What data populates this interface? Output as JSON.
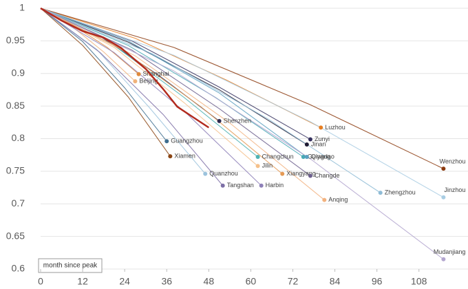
{
  "chart_data": {
    "type": "line",
    "x_label": "month since peak",
    "xlim": [
      0,
      122
    ],
    "xticks": [
      0,
      12,
      24,
      36,
      48,
      60,
      72,
      84,
      96,
      108
    ],
    "ylim": [
      0.6,
      1
    ],
    "yticks": [
      0.6,
      0.65,
      0.7,
      0.75,
      0.8,
      0.85,
      0.9,
      0.95,
      1
    ],
    "grid": true,
    "series": [
      {
        "name": "Shanghai",
        "color": "#e08a3c",
        "x": [
          0,
          9,
          19,
          28
        ],
        "values": [
          1,
          0.975,
          0.94,
          0.899
        ]
      },
      {
        "name": "Beijing",
        "color": "#f0b27a",
        "x": [
          0,
          9,
          18,
          27
        ],
        "values": [
          1,
          0.972,
          0.933,
          0.888
        ]
      },
      {
        "name": "Shenzhen",
        "color": "#2e2a4f",
        "x": [
          0,
          17,
          34,
          51
        ],
        "values": [
          1,
          0.957,
          0.896,
          0.827
        ]
      },
      {
        "name": "Luzhou",
        "color": "#e67e22",
        "x": [
          0,
          27,
          53,
          80
        ],
        "values": [
          1,
          0.954,
          0.89,
          0.817
        ]
      },
      {
        "name": "Zunyi",
        "color": "#34305e",
        "x": [
          0,
          26,
          51,
          77
        ],
        "values": [
          1,
          0.95,
          0.879,
          0.799
        ]
      },
      {
        "name": "Jinan",
        "color": "#1e1b33",
        "x": [
          0,
          25,
          51,
          76
        ],
        "values": [
          1,
          0.948,
          0.875,
          0.791
        ]
      },
      {
        "name": "Guangzhou",
        "color": "#3f6e8f",
        "x": [
          0,
          12,
          24,
          36
        ],
        "values": [
          1,
          0.949,
          0.878,
          0.796
        ]
      },
      {
        "name": "Xiamen",
        "color": "#8b4513",
        "x": [
          0,
          12,
          25,
          37
        ],
        "values": [
          1,
          0.943,
          0.864,
          0.773
        ]
      },
      {
        "name": "Changchun",
        "color": "#4fb3b3",
        "x": [
          0,
          21,
          41,
          62
        ],
        "values": [
          1,
          0.943,
          0.863,
          0.772
        ]
      },
      {
        "name": "Guiyang",
        "color": "#48a9b5",
        "x": [
          0,
          25,
          50,
          75
        ],
        "values": [
          1,
          0.943,
          0.863,
          0.772
        ]
      },
      {
        "name": "Qingdao",
        "color": "#5a9fc0",
        "x": [
          0,
          25,
          51,
          76
        ],
        "values": [
          1,
          0.95,
          0.87,
          0.772
        ]
      },
      {
        "name": "Jilin",
        "color": "#f5c08a",
        "x": [
          0,
          21,
          41,
          62
        ],
        "values": [
          1,
          0.94,
          0.855,
          0.758
        ]
      },
      {
        "name": "Xiangyang",
        "color": "#e59a55",
        "x": [
          0,
          23,
          46,
          69
        ],
        "values": [
          1,
          0.937,
          0.848,
          0.746
        ]
      },
      {
        "name": "Changde",
        "color": "#6c5f8d",
        "x": [
          0,
          26,
          51,
          77
        ],
        "values": [
          1,
          0.936,
          0.846,
          0.743
        ]
      },
      {
        "name": "Quanzhou",
        "color": "#9cc3dd",
        "x": [
          0,
          16,
          31,
          47
        ],
        "values": [
          1,
          0.937,
          0.848,
          0.746
        ]
      },
      {
        "name": "Tangshan",
        "color": "#7d6fa6",
        "x": [
          0,
          17,
          35,
          52
        ],
        "values": [
          1,
          0.932,
          0.837,
          0.728
        ]
      },
      {
        "name": "Harbin",
        "color": "#8e80b8",
        "x": [
          0,
          21,
          42,
          63
        ],
        "values": [
          1,
          0.932,
          0.837,
          0.728
        ]
      },
      {
        "name": "Anqing",
        "color": "#f2b27f",
        "x": [
          0,
          27,
          54,
          81
        ],
        "values": [
          1,
          0.927,
          0.824,
          0.706
        ]
      },
      {
        "name": "Zhengzhou",
        "color": "#8fbcd6",
        "x": [
          0,
          32,
          65,
          97
        ],
        "values": [
          1,
          0.93,
          0.83,
          0.717
        ]
      },
      {
        "name": "Wenzhou",
        "color": "#8b3a0e",
        "x": [
          0,
          38,
          77,
          115
        ],
        "values": [
          1,
          0.94,
          0.852,
          0.754
        ]
      },
      {
        "name": "Jinzhou",
        "color": "#a9cde3",
        "x": [
          0,
          38,
          77,
          115
        ],
        "values": [
          1,
          0.928,
          0.826,
          0.71
        ]
      },
      {
        "name": "Mudanjiang",
        "color": "#b3a6cf",
        "x": [
          0,
          38,
          77,
          115
        ],
        "values": [
          1,
          0.904,
          0.769,
          0.615
        ]
      },
      {
        "color": "#b22a1e",
        "highlight": true,
        "x": [
          0,
          6,
          12,
          18,
          23,
          30,
          35,
          39,
          43.5,
          48
        ],
        "values": [
          1,
          0.981,
          0.965,
          0.955,
          0.939,
          0.907,
          0.876,
          0.849,
          0.833,
          0.817
        ]
      }
    ]
  }
}
